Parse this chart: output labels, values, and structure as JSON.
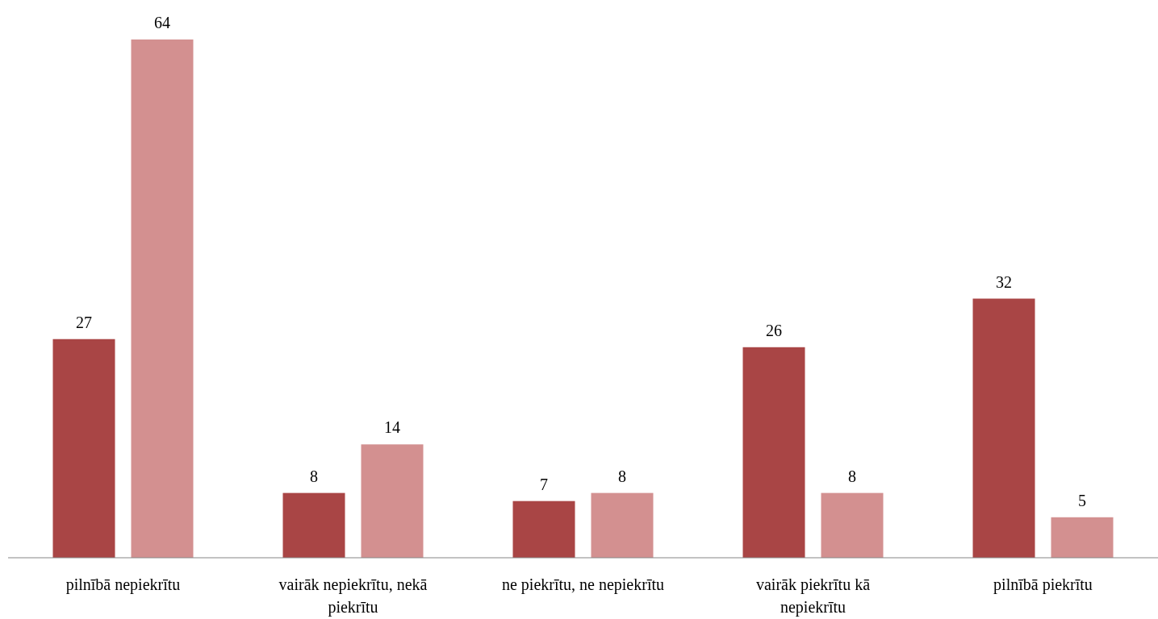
{
  "chart_data": {
    "type": "bar",
    "categories": [
      "pilnībā nepiekrītu",
      "vairāk nepiekrītu, nekā piekrītu",
      "ne piekrītu, ne nepiekrītu",
      "vairāk piekrītu kā nepiekrītu",
      "pilnībā piekrītu"
    ],
    "series": [
      {
        "color": "#a94545",
        "values": [
          27,
          8,
          7,
          26,
          32
        ]
      },
      {
        "color": "#d39090",
        "values": [
          64,
          14,
          8,
          8,
          5
        ]
      }
    ],
    "data_labels": true
  }
}
